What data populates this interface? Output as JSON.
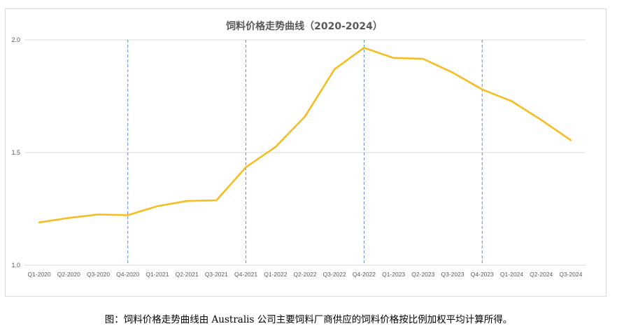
{
  "chart_data": {
    "type": "line",
    "title": "饲料价格走势曲线（2020-2024）",
    "categories": [
      "Q1-2020",
      "Q2-2020",
      "Q3-2020",
      "Q4-2020",
      "Q1-2021",
      "Q2-2021",
      "Q3-2021",
      "Q4-2021",
      "Q1-2022",
      "Q2-2022",
      "Q3-2022",
      "Q4-2022",
      "Q1-2023",
      "Q2-2023",
      "Q3-2023",
      "Q4-2023",
      "Q1-2024",
      "Q2-2024",
      "Q3-2024"
    ],
    "series": [
      {
        "values": [
          1.19,
          1.21,
          1.225,
          1.222,
          1.262,
          1.285,
          1.288,
          1.435,
          1.525,
          1.66,
          1.87,
          1.965,
          1.92,
          1.916,
          1.855,
          1.78,
          1.728,
          1.645,
          1.555
        ],
        "color": "#f5bd1f"
      }
    ],
    "y_ticks": [
      "1.0",
      "1.5",
      "2.0"
    ],
    "ylim": [
      1.0,
      2.0
    ],
    "gridlines": "horizontal",
    "vertical_markers": [
      "Q4-2020",
      "Q4-2021",
      "Q4-2022",
      "Q4-2023"
    ],
    "marker_color": "#5b8bd0",
    "legend": "none"
  },
  "caption": "图：饲料价格走势曲线由 Australis 公司主要饲料厂商供应的饲料价格按比例加权平均计算所得。"
}
